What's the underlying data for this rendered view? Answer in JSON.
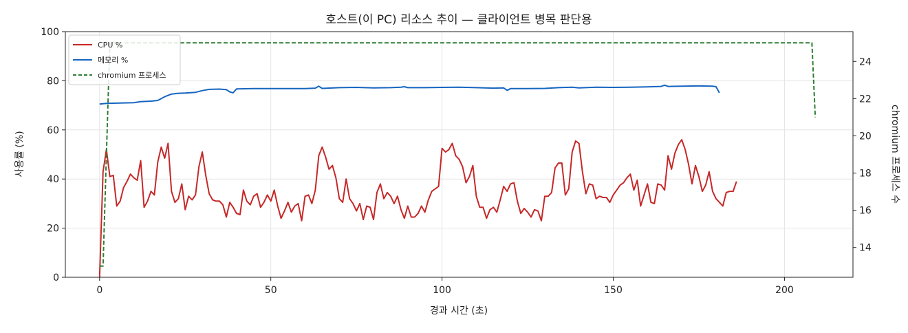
{
  "chart_data": {
    "type": "line",
    "title": "호스트(이 PC) 리소스 추이 — 클라이언트 병목 판단용",
    "xlabel": "경과 시간 (초)",
    "ylabel": "사용률 (%)",
    "y2label": "chromium 프로세스 수",
    "xlim": [
      -10,
      220
    ],
    "ylim": [
      0,
      100
    ],
    "y2lim": [
      12.4,
      25.6
    ],
    "x_ticks": [
      0,
      50,
      100,
      150,
      200
    ],
    "y_ticks": [
      0,
      20,
      40,
      60,
      80,
      100
    ],
    "y2_ticks": [
      14,
      16,
      18,
      20,
      22,
      24
    ],
    "grid": true,
    "legend_position": "top-left",
    "series": [
      {
        "name": "CPU %",
        "color": "#c62828",
        "style": "solid",
        "axis": "left",
        "points": [
          [
            0,
            0
          ],
          [
            1,
            43
          ],
          [
            2,
            52
          ],
          [
            3,
            41
          ],
          [
            4,
            41.5
          ],
          [
            5,
            29
          ],
          [
            6,
            31
          ],
          [
            7,
            36.5
          ],
          [
            8,
            39
          ],
          [
            9,
            42
          ],
          [
            10,
            40.5
          ],
          [
            11,
            39.5
          ],
          [
            12,
            47.5
          ],
          [
            13,
            28.5
          ],
          [
            14,
            31
          ],
          [
            15,
            35
          ],
          [
            16,
            33.5
          ],
          [
            17,
            47
          ],
          [
            18,
            53
          ],
          [
            19,
            48.5
          ],
          [
            20,
            54.5
          ],
          [
            21,
            35
          ],
          [
            22,
            30.5
          ],
          [
            23,
            32
          ],
          [
            24,
            38
          ],
          [
            25,
            27.5
          ],
          [
            26,
            33
          ],
          [
            27,
            31.5
          ],
          [
            28,
            33.5
          ],
          [
            29,
            45
          ],
          [
            30,
            51
          ],
          [
            31,
            41.5
          ],
          [
            32,
            34
          ],
          [
            33,
            31.5
          ],
          [
            34,
            31
          ],
          [
            35,
            31
          ],
          [
            36,
            29.5
          ],
          [
            37,
            24.5
          ],
          [
            38,
            30.5
          ],
          [
            39,
            28.5
          ],
          [
            40,
            26
          ],
          [
            41,
            25.5
          ],
          [
            42,
            35.5
          ],
          [
            43,
            31
          ],
          [
            44,
            29.5
          ],
          [
            45,
            33
          ],
          [
            46,
            34
          ],
          [
            47,
            28.5
          ],
          [
            48,
            30.5
          ],
          [
            49,
            33.5
          ],
          [
            50,
            31
          ],
          [
            51,
            35.5
          ],
          [
            52,
            29
          ],
          [
            53,
            24
          ],
          [
            54,
            27
          ],
          [
            55,
            30.5
          ],
          [
            56,
            26.5
          ],
          [
            57,
            29
          ],
          [
            58,
            30
          ],
          [
            59,
            23
          ],
          [
            60,
            33
          ],
          [
            61,
            33.5
          ],
          [
            62,
            30
          ],
          [
            63,
            35.5
          ],
          [
            64,
            49.5
          ],
          [
            65,
            53
          ],
          [
            66,
            49
          ],
          [
            67,
            44
          ],
          [
            68,
            45.5
          ],
          [
            69,
            40.5
          ],
          [
            70,
            32
          ],
          [
            71,
            30.5
          ],
          [
            72,
            40
          ],
          [
            73,
            32
          ],
          [
            74,
            30
          ],
          [
            75,
            27
          ],
          [
            76,
            30
          ],
          [
            77,
            23.5
          ],
          [
            78,
            29
          ],
          [
            79,
            28.5
          ],
          [
            80,
            23.5
          ],
          [
            81,
            34.5
          ],
          [
            82,
            38
          ],
          [
            83,
            32
          ],
          [
            84,
            34.5
          ],
          [
            85,
            33
          ],
          [
            86,
            30
          ],
          [
            87,
            33
          ],
          [
            88,
            27.5
          ],
          [
            89,
            24
          ],
          [
            90,
            29
          ],
          [
            91,
            24.5
          ],
          [
            92,
            24.5
          ],
          [
            93,
            26
          ],
          [
            94,
            29
          ],
          [
            95,
            26.5
          ],
          [
            96,
            31.5
          ],
          [
            97,
            35
          ],
          [
            98,
            36
          ],
          [
            99,
            37
          ],
          [
            100,
            52.5
          ],
          [
            101,
            51
          ],
          [
            102,
            52
          ],
          [
            103,
            54.5
          ],
          [
            104,
            49.5
          ],
          [
            105,
            48
          ],
          [
            106,
            45
          ],
          [
            107,
            38.5
          ],
          [
            108,
            41
          ],
          [
            109,
            45.5
          ],
          [
            110,
            33
          ],
          [
            111,
            28.5
          ],
          [
            112,
            28.5
          ],
          [
            113,
            24
          ],
          [
            114,
            27.5
          ],
          [
            115,
            28.5
          ],
          [
            116,
            26.5
          ],
          [
            117,
            31.5
          ],
          [
            118,
            37
          ],
          [
            119,
            35
          ],
          [
            120,
            38
          ],
          [
            121,
            38.5
          ],
          [
            122,
            31
          ],
          [
            123,
            26
          ],
          [
            124,
            28
          ],
          [
            125,
            26.5
          ],
          [
            126,
            24.5
          ],
          [
            127,
            27.5
          ],
          [
            128,
            27
          ],
          [
            129,
            23
          ],
          [
            130,
            33
          ],
          [
            131,
            33
          ],
          [
            132,
            34.5
          ],
          [
            133,
            44.5
          ],
          [
            134,
            46.5
          ],
          [
            135,
            46.5
          ],
          [
            136,
            33.5
          ],
          [
            137,
            36
          ],
          [
            138,
            51
          ],
          [
            139,
            55.5
          ],
          [
            140,
            54.5
          ],
          [
            141,
            43
          ],
          [
            142,
            34
          ],
          [
            143,
            38
          ],
          [
            144,
            37.5
          ],
          [
            145,
            32
          ],
          [
            146,
            33
          ],
          [
            147,
            32.5
          ],
          [
            148,
            32.5
          ],
          [
            149,
            30.5
          ],
          [
            150,
            33.5
          ],
          [
            151,
            35.5
          ],
          [
            152,
            37.5
          ],
          [
            153,
            38.5
          ],
          [
            154,
            40.5
          ],
          [
            155,
            42
          ],
          [
            156,
            35.5
          ],
          [
            157,
            39.5
          ],
          [
            158,
            29
          ],
          [
            159,
            33.5
          ],
          [
            160,
            38
          ],
          [
            161,
            30.5
          ],
          [
            162,
            30
          ],
          [
            163,
            38
          ],
          [
            164,
            37.5
          ],
          [
            165,
            35.5
          ],
          [
            166,
            49.5
          ],
          [
            167,
            44
          ],
          [
            168,
            50.5
          ],
          [
            169,
            54
          ],
          [
            170,
            56
          ],
          [
            171,
            52
          ],
          [
            172,
            46
          ],
          [
            173,
            38
          ],
          [
            174,
            45.5
          ],
          [
            175,
            41
          ],
          [
            176,
            35
          ],
          [
            177,
            37.5
          ],
          [
            178,
            43
          ],
          [
            179,
            35
          ],
          [
            180,
            32
          ],
          [
            181,
            30.5
          ],
          [
            182,
            29
          ],
          [
            183,
            34.5
          ],
          [
            184,
            35
          ],
          [
            185,
            35
          ],
          [
            186,
            39
          ]
        ]
      },
      {
        "name": "메모리 %",
        "color": "#1565c0",
        "style": "solid",
        "axis": "left",
        "points": [
          [
            0,
            70.5
          ],
          [
            2,
            70.8
          ],
          [
            5,
            70.9
          ],
          [
            10,
            71.1
          ],
          [
            12,
            71.5
          ],
          [
            15,
            71.7
          ],
          [
            17,
            72
          ],
          [
            19,
            73.5
          ],
          [
            21,
            74.6
          ],
          [
            23,
            74.9
          ],
          [
            25,
            75
          ],
          [
            28,
            75.3
          ],
          [
            30,
            76
          ],
          [
            32,
            76.5
          ],
          [
            35,
            76.6
          ],
          [
            37,
            76.4
          ],
          [
            38,
            75.5
          ],
          [
            39,
            75.1
          ],
          [
            40,
            76.7
          ],
          [
            45,
            76.8
          ],
          [
            50,
            76.8
          ],
          [
            55,
            76.8
          ],
          [
            60,
            76.8
          ],
          [
            63,
            77
          ],
          [
            64,
            77.8
          ],
          [
            65,
            76.9
          ],
          [
            70,
            77.2
          ],
          [
            75,
            77.3
          ],
          [
            80,
            77.1
          ],
          [
            85,
            77.2
          ],
          [
            88,
            77.4
          ],
          [
            89,
            77.6
          ],
          [
            90,
            77.2
          ],
          [
            95,
            77.2
          ],
          [
            100,
            77.3
          ],
          [
            105,
            77.4
          ],
          [
            110,
            77.2
          ],
          [
            115,
            77
          ],
          [
            118,
            77.1
          ],
          [
            119,
            76.1
          ],
          [
            120,
            76.8
          ],
          [
            125,
            76.8
          ],
          [
            130,
            76.9
          ],
          [
            134,
            77.2
          ],
          [
            138,
            77.4
          ],
          [
            140,
            77.1
          ],
          [
            145,
            77.4
          ],
          [
            150,
            77.3
          ],
          [
            155,
            77.4
          ],
          [
            160,
            77.5
          ],
          [
            164,
            77.7
          ],
          [
            165,
            78.2
          ],
          [
            166,
            77.7
          ],
          [
            170,
            77.8
          ],
          [
            175,
            77.9
          ],
          [
            179,
            77.8
          ],
          [
            180,
            77.6
          ],
          [
            181,
            75.1
          ]
        ]
      },
      {
        "name": "chromium 프로세스",
        "color": "#2e7d32",
        "style": "dashed",
        "axis": "right",
        "points": [
          [
            0,
            13
          ],
          [
            1,
            13
          ],
          [
            2,
            19
          ],
          [
            3,
            25
          ],
          [
            208,
            25
          ],
          [
            209,
            21
          ]
        ]
      }
    ]
  }
}
